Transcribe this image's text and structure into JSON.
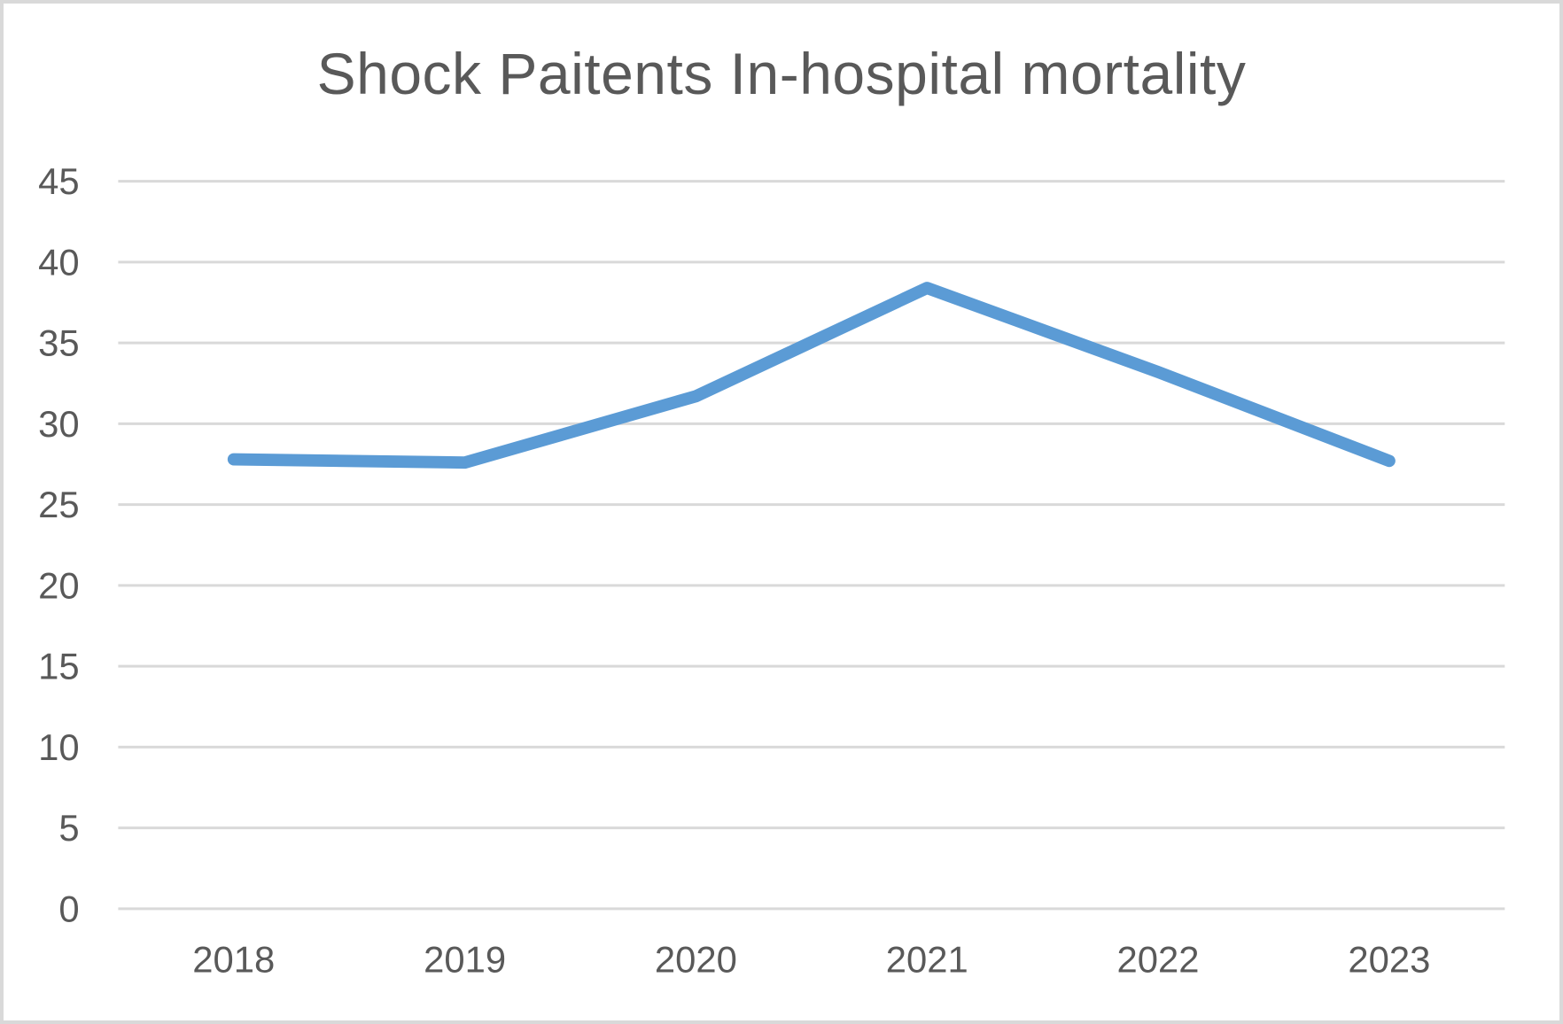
{
  "chart_data": {
    "type": "line",
    "title": "Shock Paitents In-hospital mortality",
    "categories": [
      "2018",
      "2019",
      "2020",
      "2021",
      "2022",
      "2023"
    ],
    "series": [
      {
        "name": "In-hospital mortality",
        "values": [
          27.8,
          27.6,
          31.7,
          38.4,
          33.2,
          27.7
        ]
      }
    ],
    "xlabel": "",
    "ylabel": "",
    "ylim": [
      0,
      45
    ],
    "yticks": [
      0,
      5,
      10,
      15,
      20,
      25,
      30,
      35,
      40,
      45
    ],
    "grid": "horizontal",
    "legend": "none",
    "colors": {
      "line": "#5b9bd5",
      "gridline": "#d9d9d9",
      "text": "#595959",
      "title_text": "#595959",
      "frame_border": "#d9d9d9",
      "background": "#ffffff"
    }
  }
}
